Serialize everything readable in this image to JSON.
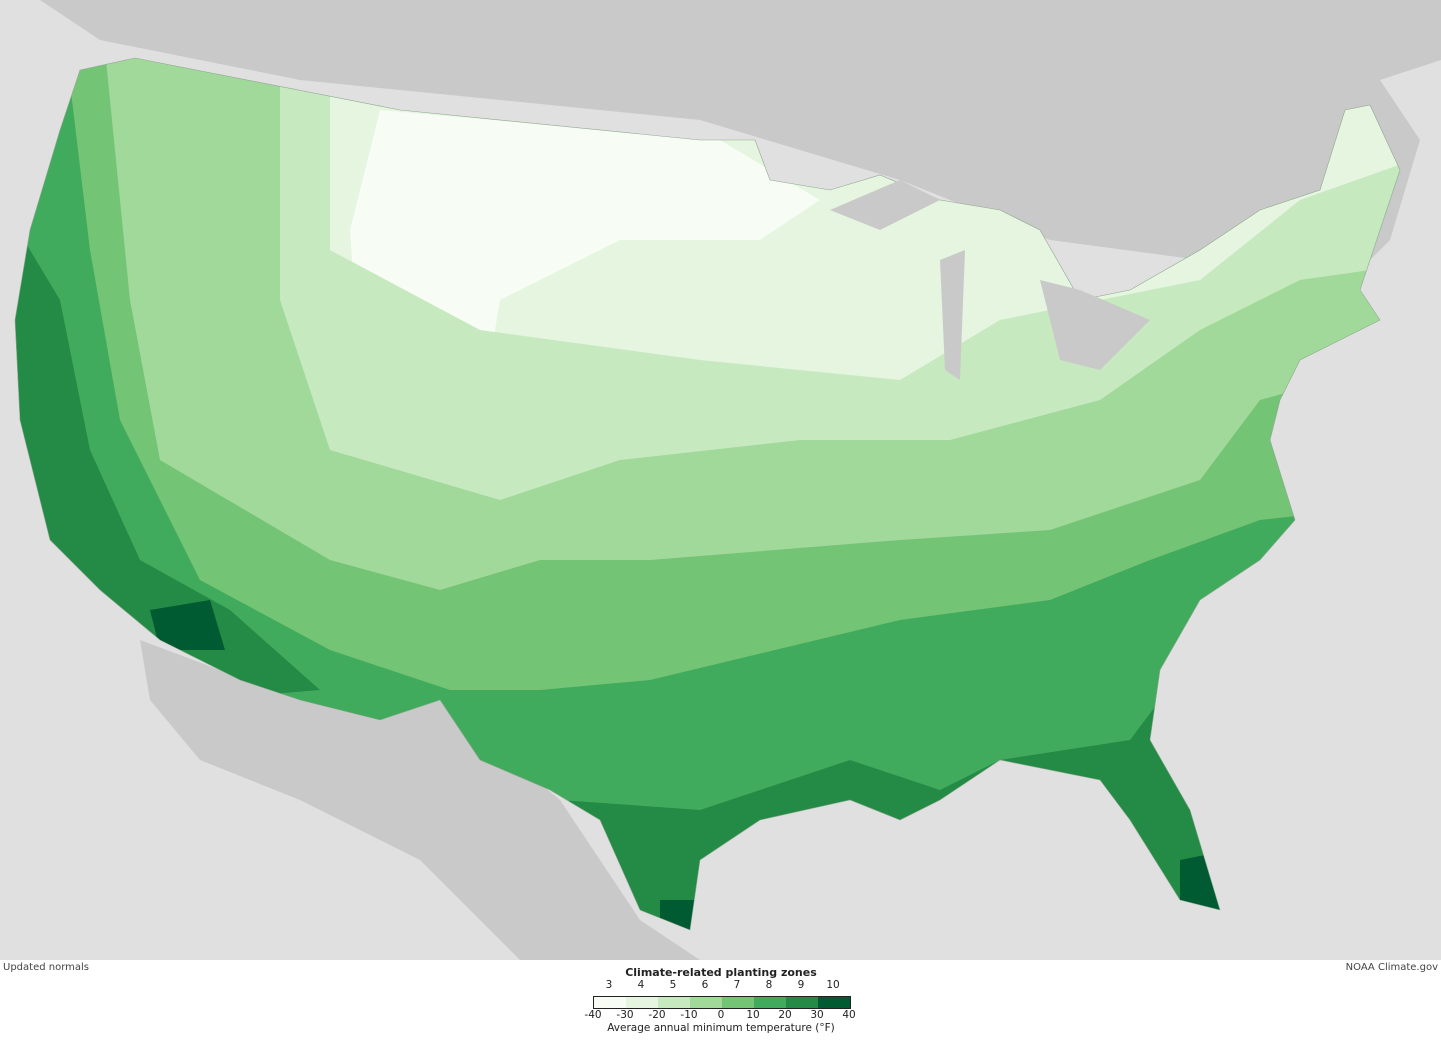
{
  "notes": {
    "left": "Updated normals",
    "right": "NOAA Climate.gov"
  },
  "legend": {
    "title": "Climate-related planting zones",
    "zones": [
      "3",
      "4",
      "5",
      "6",
      "7",
      "8",
      "9",
      "10"
    ],
    "colors": [
      "#f7fcf5",
      "#e5f5e0",
      "#c7e9c0",
      "#a1d99b",
      "#74c476",
      "#41ab5d",
      "#238b45",
      "#005a32"
    ],
    "ticks": [
      "-40",
      "-30",
      "-20",
      "-10",
      "0",
      "10",
      "20",
      "30",
      "40"
    ],
    "axis_label": "Average annual minimum temperature (°F)"
  },
  "map_colors": {
    "ocean": "#e0e0e0",
    "other_land": "#c9c9c9",
    "borders": "#8fa88f"
  }
}
